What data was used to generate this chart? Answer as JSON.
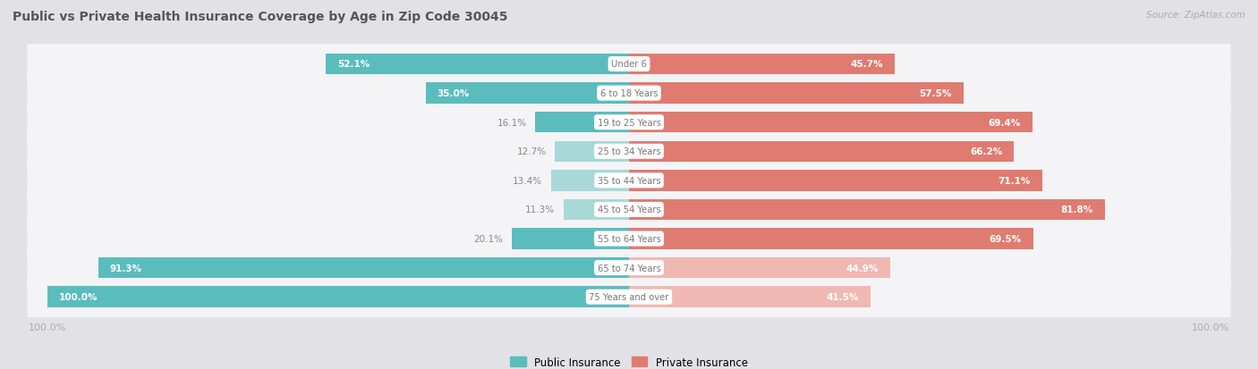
{
  "title": "Public vs Private Health Insurance Coverage by Age in Zip Code 30045",
  "source": "Source: ZipAtlas.com",
  "categories": [
    "Under 6",
    "6 to 18 Years",
    "19 to 25 Years",
    "25 to 34 Years",
    "35 to 44 Years",
    "45 to 54 Years",
    "55 to 64 Years",
    "65 to 74 Years",
    "75 Years and over"
  ],
  "public_values": [
    52.1,
    35.0,
    16.1,
    12.7,
    13.4,
    11.3,
    20.1,
    91.3,
    100.0
  ],
  "private_values": [
    45.7,
    57.5,
    69.4,
    66.2,
    71.1,
    81.8,
    69.5,
    44.9,
    41.5
  ],
  "public_color": "#5bbcbe",
  "public_color_light": "#a8d8d8",
  "private_color": "#e07b72",
  "private_color_light": "#f0b8b2",
  "bg_color": "#e2e2e6",
  "row_bg_color": "#f4f4f6",
  "title_color": "#555555",
  "value_inside_color": "#ffffff",
  "value_outside_color": "#888888",
  "category_color": "#777777",
  "axis_label_color": "#aaaaaa",
  "legend_public": "Public Insurance",
  "legend_private": "Private Insurance",
  "max_val": 100.0,
  "inside_threshold_pub": 25,
  "inside_threshold_priv": 30
}
